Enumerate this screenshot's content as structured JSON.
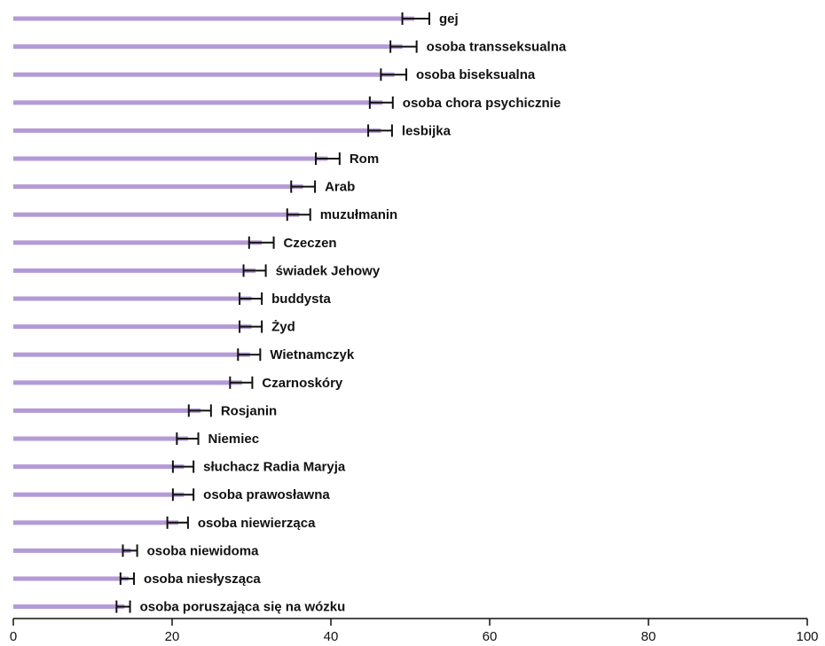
{
  "chart_data": {
    "type": "bar",
    "orientation": "horizontal",
    "title": "",
    "xlabel": "",
    "ylabel": "",
    "xlim": [
      0,
      100
    ],
    "xticks": [
      0,
      20,
      40,
      60,
      80,
      100
    ],
    "grid": false,
    "categories": [
      "gej",
      "osoba transseksualna",
      "osoba biseksualna",
      "osoba chora psychicznie",
      "lesbijka",
      "Rom",
      "Arab",
      "muzułmanin",
      "Czeczen",
      "świadek Jehowy",
      "buddysta",
      "Żyd",
      "Wietnamczyk",
      "Czarnoskóry",
      "Rosjanin",
      "Niemiec",
      "słuchacz Radia Maryja",
      "osoba prawosławna",
      "osoba niewierząca",
      "osoba niewidoma",
      "osoba niesłysząca",
      "osoba poruszająca się na wózku"
    ],
    "values": [
      50.5,
      49,
      48,
      46.5,
      46.3,
      39.6,
      36.5,
      36,
      31.3,
      30.5,
      30,
      30,
      29.8,
      28.8,
      23.6,
      22,
      21.5,
      21.5,
      20.8,
      14.8,
      14.5,
      14
    ],
    "error_low": [
      49,
      47.5,
      46.3,
      44.9,
      44.7,
      38.1,
      35,
      34.5,
      29.7,
      29,
      28.5,
      28.5,
      28.3,
      27.3,
      22.1,
      20.6,
      20.1,
      20.1,
      19.4,
      13.8,
      13.5,
      13
    ],
    "error_high": [
      52.4,
      50.8,
      49.5,
      47.8,
      47.7,
      41.1,
      38,
      37.4,
      32.8,
      31.8,
      31.3,
      31.3,
      31.1,
      30.1,
      24.9,
      23.3,
      22.7,
      22.7,
      22,
      15.6,
      15.2,
      14.7
    ],
    "colors": {
      "bar": "#b49ad6",
      "error_bar": "#111111",
      "axis": "#111111"
    }
  }
}
